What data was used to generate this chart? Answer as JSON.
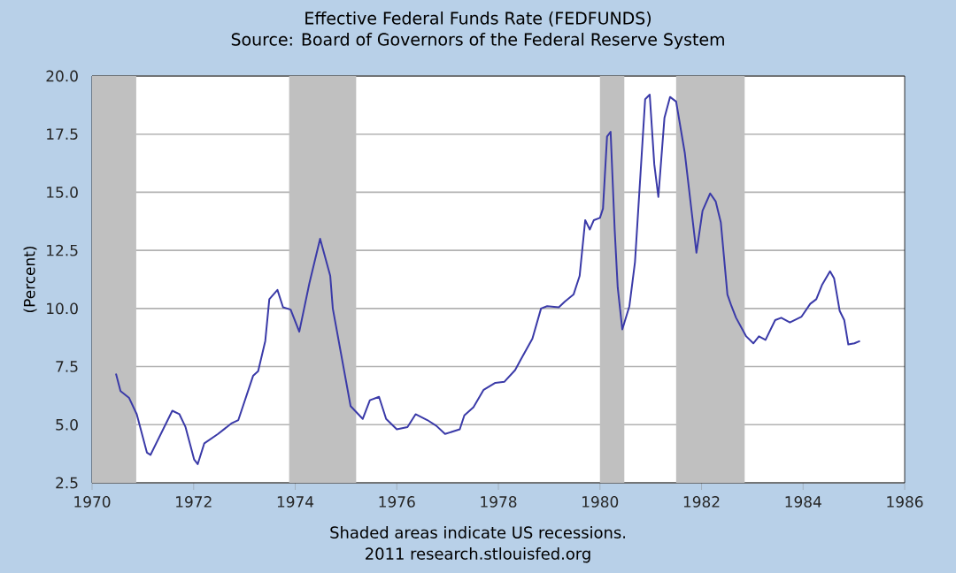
{
  "chart_data": {
    "type": "line",
    "title": "Effective Federal Funds Rate (FEDFUNDS)",
    "subtitle": "Source: Board of Governors of the Federal Reserve System",
    "ylabel": "(Percent)",
    "annotations": [
      "Shaded areas indicate US recessions.",
      "2011 research.stlouisfed.org"
    ],
    "xlim": [
      1970,
      1986
    ],
    "xticks": [
      1970,
      1972,
      1974,
      1976,
      1978,
      1980,
      1982,
      1984,
      1986
    ],
    "ylim": [
      2.5,
      20
    ],
    "yticks": [
      2.5,
      {
        "value": 5,
        "label": "5.0"
      },
      7.5,
      {
        "value": 10,
        "label": "10.0"
      },
      12.5,
      {
        "value": 15,
        "label": "15.0"
      },
      17.5,
      {
        "value": 20,
        "label": "20.0"
      }
    ],
    "grid": "y",
    "marker": "none",
    "line_style": "solid",
    "bands": [
      {
        "axis": "x",
        "from": 1970,
        "to": 1970.87,
        "color": "#c0c0c0"
      },
      {
        "axis": "x",
        "from": 1973.88,
        "to": 1975.2,
        "color": "#c0c0c0"
      },
      {
        "axis": "x",
        "from": 1980.0,
        "to": 1980.48,
        "color": "#c0c0c0"
      },
      {
        "axis": "x",
        "from": 1981.5,
        "to": 1982.85,
        "color": "#c0c0c0"
      }
    ],
    "series": [
      {
        "color": "#3a3aa8",
        "x": [
          1970.47,
          1970.56,
          1970.73,
          1970.88,
          1971.08,
          1971.15,
          1971.58,
          1971.72,
          1971.84,
          1972.01,
          1972.08,
          1972.21,
          1972.48,
          1972.74,
          1972.88,
          1973.17,
          1973.27,
          1973.41,
          1973.49,
          1973.65,
          1973.76,
          1973.91,
          1974.08,
          1974.28,
          1974.49,
          1974.69,
          1974.74,
          1975.09,
          1975.33,
          1975.47,
          1975.65,
          1975.79,
          1976.0,
          1976.21,
          1976.37,
          1976.6,
          1976.78,
          1976.95,
          1977.24,
          1977.33,
          1977.51,
          1977.71,
          1977.94,
          1978.12,
          1978.33,
          1978.44,
          1978.67,
          1978.84,
          1978.96,
          1979.19,
          1979.31,
          1979.48,
          1979.6,
          1979.71,
          1979.8,
          1979.88,
          1980.0,
          1980.06,
          1980.14,
          1980.21,
          1980.29,
          1980.35,
          1980.44,
          1980.58,
          1980.69,
          1980.79,
          1980.89,
          1980.98,
          1981.07,
          1981.15,
          1981.27,
          1981.38,
          1981.5,
          1981.67,
          1981.9,
          1982.02,
          1982.17,
          1982.28,
          1982.38,
          1982.51,
          1982.59,
          1982.68,
          1982.88,
          1983.02,
          1983.13,
          1983.26,
          1983.45,
          1983.57,
          1983.74,
          1983.97,
          1984.14,
          1984.26,
          1984.37,
          1984.53,
          1984.61,
          1984.72,
          1984.81,
          1984.89,
          1985.01,
          1985.12
        ],
        "values": [
          7.2,
          6.45,
          6.15,
          5.45,
          3.8,
          3.7,
          5.6,
          5.45,
          4.9,
          3.5,
          3.3,
          4.2,
          4.6,
          5.05,
          5.2,
          7.1,
          7.3,
          8.6,
          10.4,
          10.8,
          10.05,
          9.95,
          9.0,
          11.1,
          13.0,
          11.4,
          10.0,
          5.8,
          5.25,
          6.05,
          6.2,
          5.25,
          4.8,
          4.9,
          5.45,
          5.2,
          4.95,
          4.6,
          4.8,
          5.4,
          5.75,
          6.5,
          6.8,
          6.85,
          7.35,
          7.8,
          8.7,
          10.0,
          10.1,
          10.05,
          10.3,
          10.6,
          11.4,
          13.8,
          13.4,
          13.8,
          13.9,
          14.3,
          17.4,
          17.6,
          13.4,
          10.9,
          9.1,
          10.1,
          12.0,
          15.5,
          19.0,
          19.2,
          16.2,
          14.8,
          18.2,
          19.1,
          18.9,
          16.7,
          12.4,
          14.2,
          14.95,
          14.6,
          13.7,
          10.6,
          10.1,
          9.6,
          8.8,
          8.5,
          8.8,
          8.65,
          9.5,
          9.6,
          9.4,
          9.65,
          10.2,
          10.4,
          11.0,
          11.6,
          11.3,
          9.9,
          9.5,
          8.45,
          8.5,
          8.6
        ]
      }
    ]
  }
}
